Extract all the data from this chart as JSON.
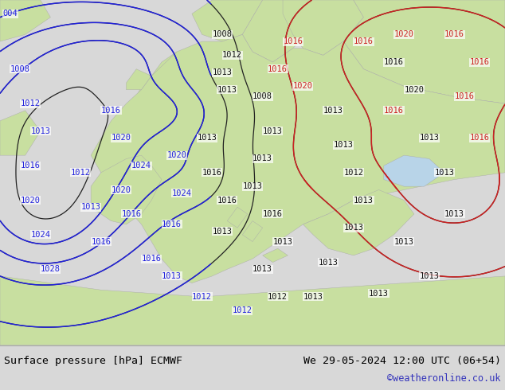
{
  "title_left": "Surface pressure [hPa] ECMWF",
  "title_right": "We 29-05-2024 12:00 UTC (06+54)",
  "credit": "©weatheronline.co.uk",
  "sea_color": "#b8d4e8",
  "land_color": "#c8dfa0",
  "land_color2": "#b0d088",
  "bottom_bar_color": "#d8d8d8",
  "credit_color": "#3333bb",
  "map_border_color": "#888888",
  "figsize": [
    6.34,
    4.9
  ],
  "dpi": 100
}
